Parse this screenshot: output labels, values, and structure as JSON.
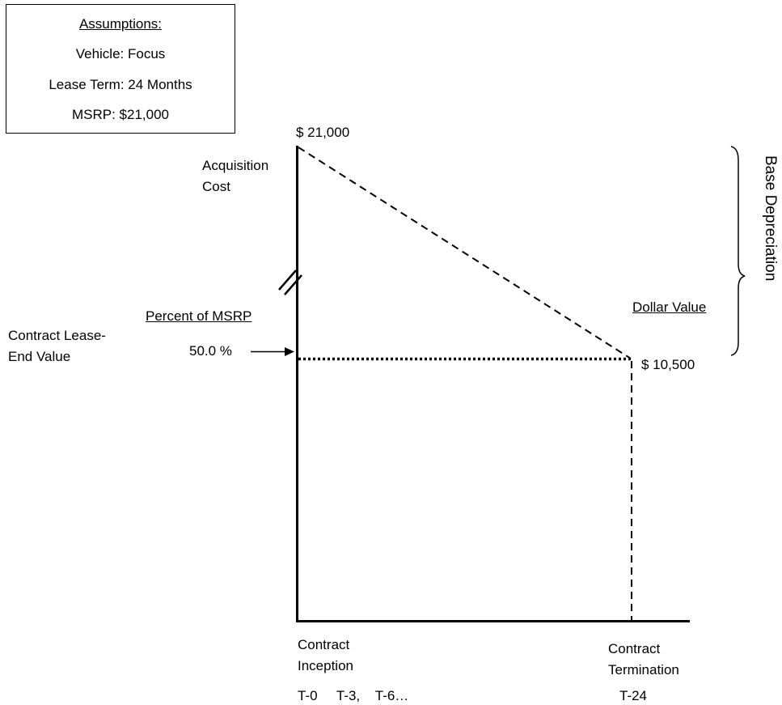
{
  "assumptions": {
    "heading": "Assumptions:",
    "vehicle": "Vehicle: Focus",
    "lease_term": "Lease Term: 24 Months",
    "msrp": "MSRP: $21,000"
  },
  "labels": {
    "top_value": "$  21,000",
    "acquisition_line1": "Acquisition",
    "acquisition_line2": "Cost",
    "percent_of_msrp": "Percent of MSRP",
    "contract_lease_line1": "Contract Lease-",
    "contract_lease_line2": "End Value",
    "percent_value": "50.0 %",
    "dollar_value_heading": "Dollar Value",
    "end_value": "$ 10,500",
    "base_depreciation": "Base Depreciation",
    "inception_line1": "Contract",
    "inception_line2": "Inception",
    "termination_line1": "Contract",
    "termination_line2": "Termination",
    "ticks_left": "T-0     T-3,    T-6…",
    "tick_right": "T-24"
  }
}
